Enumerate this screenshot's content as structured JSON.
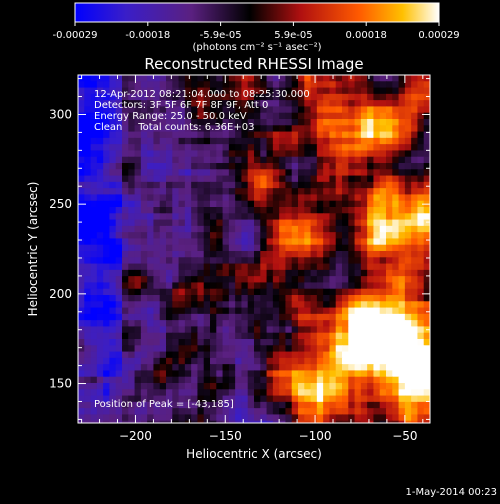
{
  "colorbar": {
    "ticks": [
      "-0.00029",
      "-0.00018",
      "-5.9e-05",
      "5.9e-05",
      "0.00018",
      "0.00029"
    ],
    "unit_label": "(photons cm⁻² s⁻¹ asec⁻²)"
  },
  "title": "Reconstructed RHESSI Image",
  "info": {
    "line1": "12-Apr-2012 08:21:04.000 to 08:25:30.000",
    "line2": "Detectors: 3F 5F 6F 7F 8F 9F, Att 0",
    "line3": "Energy Range: 25.0 - 50.0 keV",
    "line4": "Clean     Total counts: 6.36E+03",
    "peak": "Position of Peak = [-43,185]"
  },
  "footer": {
    "date": "1-May-2014 00:23"
  },
  "chart_data": {
    "type": "heatmap",
    "title": "Reconstructed RHESSI Image",
    "xlabel": "Heliocentric X (arcsec)",
    "ylabel": "Heliocentric Y (arcsec)",
    "xlim": [
      -232,
      -36
    ],
    "ylim": [
      128,
      322
    ],
    "xticks": [
      -200,
      -150,
      -100,
      -50
    ],
    "yticks": [
      150,
      200,
      250,
      300
    ],
    "xtick_labels": [
      "−200",
      "−150",
      "−100",
      "−50"
    ],
    "ytick_labels": [
      "150",
      "200",
      "250",
      "300"
    ],
    "value_range": [
      -0.00029,
      0.00029
    ],
    "colormap": [
      "#0000ff",
      "#4b1fb0",
      "#5a2070",
      "#000000",
      "#b01818",
      "#ff5a00",
      "#ffc000",
      "#ffffff"
    ],
    "peak_position": [
      -43,
      185
    ]
  }
}
